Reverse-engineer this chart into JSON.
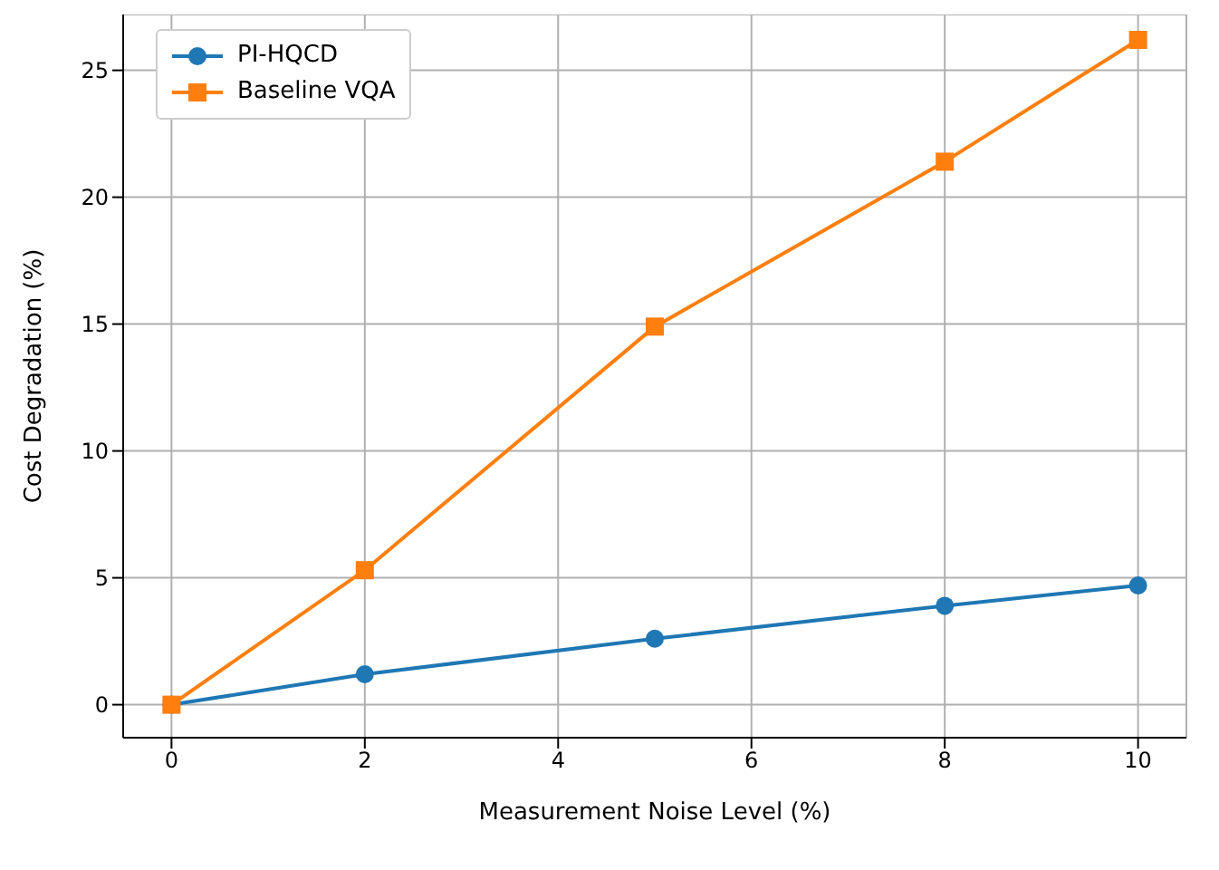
{
  "chart_data": {
    "type": "line",
    "xlabel": "Measurement Noise Level (%)",
    "ylabel": "Cost Degradation (%)",
    "x": [
      0,
      2,
      5,
      8,
      10
    ],
    "series": [
      {
        "name": "PI-HQCD",
        "color": "#1f77b4",
        "marker": "circle",
        "values": [
          0,
          1.2,
          2.6,
          3.9,
          4.7
        ]
      },
      {
        "name": "Baseline VQA",
        "color": "#ff7f0e",
        "marker": "square",
        "values": [
          0,
          5.3,
          14.9,
          21.4,
          26.2
        ]
      }
    ],
    "xlim": [
      -0.5,
      10.5
    ],
    "xticks": [
      0,
      2,
      4,
      6,
      8,
      10
    ],
    "ylim": [
      -1.3,
      27.2
    ],
    "yticks": [
      0,
      5,
      10,
      15,
      20,
      25
    ],
    "grid": true,
    "legend": "top left",
    "line_style": "solid"
  }
}
